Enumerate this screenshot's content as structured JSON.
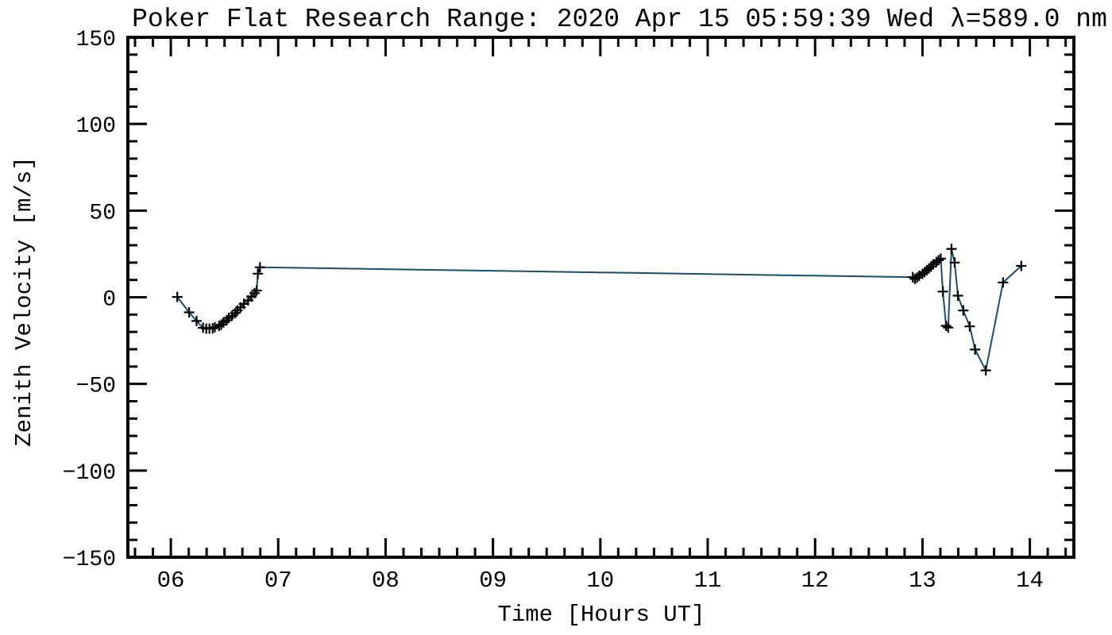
{
  "figure": {
    "background": "#ffffff",
    "frame_color": "#000000"
  },
  "chart_data": {
    "type": "line",
    "title": "Poker Flat Research Range: 2020 Apr 15 05:59:39 Wed λ=589.0 nm",
    "xlabel": "Time [Hours UT]",
    "ylabel": "Zenith Velocity [m/s]",
    "xlim": [
      5.6,
      14.41
    ],
    "ylim": [
      -150,
      150
    ],
    "grid": false,
    "legend": null,
    "x_major_ticks": [
      6,
      7,
      8,
      9,
      10,
      11,
      12,
      13,
      14
    ],
    "x_tick_labels": [
      "06",
      "07",
      "08",
      "09",
      "10",
      "11",
      "12",
      "13",
      "14"
    ],
    "x_minor_per_major": 6,
    "y_major_ticks": [
      150,
      100,
      50,
      0,
      -50,
      -100,
      -150
    ],
    "y_tick_labels": [
      "150",
      "100",
      "50",
      "0",
      "−50",
      "−100",
      "−150"
    ],
    "y_minor_step": 10,
    "line_color": "#1b4c68",
    "marker": "plus",
    "marker_color": "#000000",
    "series": [
      {
        "name": "Zenith Velocity",
        "points": [
          [
            6.06,
            0.2
          ],
          [
            6.17,
            -8.7
          ],
          [
            6.24,
            -13.7
          ],
          [
            6.3,
            -17.6
          ],
          [
            6.33,
            -18.1
          ],
          [
            6.36,
            -18.1
          ],
          [
            6.39,
            -17.9
          ],
          [
            6.41,
            -17.3
          ],
          [
            6.45,
            -16.5
          ],
          [
            6.47,
            -15.8
          ],
          [
            6.49,
            -14.5
          ],
          [
            6.52,
            -13.3
          ],
          [
            6.54,
            -11.9
          ],
          [
            6.57,
            -10.7
          ],
          [
            6.6,
            -9.1
          ],
          [
            6.62,
            -7.6
          ],
          [
            6.65,
            -5.8
          ],
          [
            6.68,
            -3.8
          ],
          [
            6.72,
            -1.8
          ],
          [
            6.75,
            0.4
          ],
          [
            6.78,
            2.4
          ],
          [
            6.8,
            3.9
          ],
          [
            6.81,
            13.6
          ],
          [
            6.83,
            17.3
          ],
          [
            12.91,
            11.6
          ],
          [
            12.93,
            10.6
          ],
          [
            12.95,
            11.3
          ],
          [
            12.97,
            12.4
          ],
          [
            13.0,
            13.5
          ],
          [
            13.02,
            14.5
          ],
          [
            13.04,
            15.6
          ],
          [
            13.06,
            16.6
          ],
          [
            13.08,
            17.7
          ],
          [
            13.1,
            19.0
          ],
          [
            13.13,
            20.4
          ],
          [
            13.15,
            21.4
          ],
          [
            13.17,
            22.3
          ],
          [
            13.19,
            3.3
          ],
          [
            13.22,
            -16.5
          ],
          [
            13.24,
            -17.5
          ],
          [
            13.27,
            27.9
          ],
          [
            13.3,
            20.0
          ],
          [
            13.33,
            0.9
          ],
          [
            13.38,
            -7.6
          ],
          [
            13.44,
            -16.8
          ],
          [
            13.49,
            -30.2
          ],
          [
            13.59,
            -42.2
          ],
          [
            13.75,
            8.5
          ],
          [
            13.92,
            18.1
          ]
        ]
      }
    ]
  }
}
